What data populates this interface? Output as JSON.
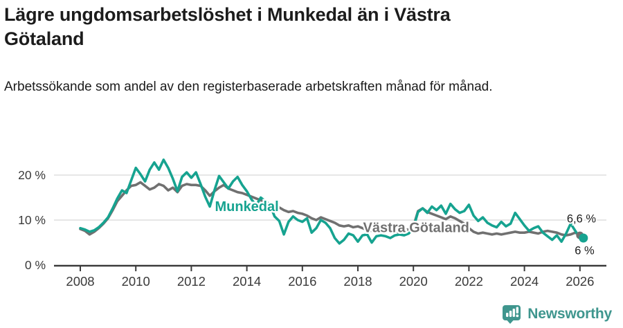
{
  "header": {
    "title": "Lägre ungdomsarbetslöshet i Munkedal än i Västra Götaland",
    "subtitle": "Arbetssökande som andel av den registerbaserade arbetskraften månad för månad."
  },
  "footer": {
    "brand": "Newsworthy",
    "logo_icon": "newsworthy-chart-bubble-icon",
    "brand_color": "#3f968e"
  },
  "chart_data": {
    "type": "line",
    "x_start_year": 2008,
    "x_step_months": 2,
    "x_ticks": [
      2008,
      2010,
      2012,
      2014,
      2016,
      2018,
      2020,
      2022,
      2024,
      2026
    ],
    "y_ticks": [
      {
        "value": 0,
        "label": "0 %"
      },
      {
        "value": 10,
        "label": "10 %"
      },
      {
        "value": 20,
        "label": "20 %"
      }
    ],
    "xlim": [
      2007.1,
      2027.0
    ],
    "ylim": [
      0,
      25
    ],
    "grid": "horizontal",
    "colors": {
      "grid": "#dedede",
      "axis": "#3a3a3a",
      "tick_text": "#3a3a3a",
      "annotation_text": "#1a1a1a"
    },
    "series": [
      {
        "name": "Västra Götaland",
        "color": "#707070",
        "end_label": "6,6 %",
        "end_value": 6.6,
        "label_pos": {
          "year": 2020.1,
          "value": 8.4
        },
        "dot_radius": 5.5,
        "dot_dx": 0,
        "values": [
          8.0,
          7.6,
          6.8,
          7.4,
          8.2,
          9.2,
          10.4,
          12.2,
          14.2,
          15.4,
          16.6,
          17.6,
          17.8,
          18.4,
          17.6,
          16.8,
          17.2,
          18.0,
          17.6,
          16.6,
          17.2,
          16.2,
          17.6,
          18.0,
          17.8,
          17.8,
          17.6,
          16.6,
          15.4,
          16.4,
          17.2,
          17.8,
          17.0,
          16.6,
          16.2,
          16.0,
          15.6,
          15.2,
          14.8,
          14.4,
          14.0,
          13.6,
          13.2,
          12.8,
          12.2,
          11.8,
          12.0,
          11.6,
          11.4,
          11.0,
          10.4,
          10.0,
          10.6,
          10.2,
          9.8,
          9.4,
          8.8,
          8.6,
          8.8,
          8.4,
          8.6,
          8.2,
          7.8,
          7.6,
          8.0,
          7.8,
          7.6,
          7.4,
          7.2,
          7.4,
          7.6,
          8.0,
          8.6,
          12.0,
          12.6,
          11.8,
          11.4,
          11.0,
          10.6,
          10.2,
          10.8,
          10.4,
          9.8,
          9.2,
          8.2,
          7.4,
          7.0,
          7.2,
          7.0,
          6.8,
          7.0,
          6.8,
          7.0,
          7.2,
          7.4,
          7.2,
          7.2,
          7.4,
          7.2,
          7.0,
          7.4,
          7.6,
          7.4,
          7.2,
          6.8,
          6.6,
          6.8,
          7.2,
          6.6
        ]
      },
      {
        "name": "Munkedal",
        "color": "#16a390",
        "end_label": "6 %",
        "end_value": 6.0,
        "label_pos": {
          "year": 2014.0,
          "value": 13.1
        },
        "dot_radius": 6.5,
        "dot_dx": 5,
        "values": [
          8.2,
          7.9,
          7.4,
          7.7,
          8.4,
          9.4,
          10.6,
          12.6,
          14.8,
          16.6,
          16.0,
          18.8,
          21.6,
          20.2,
          18.6,
          21.2,
          22.8,
          21.2,
          23.4,
          21.6,
          19.2,
          16.4,
          19.6,
          20.6,
          19.4,
          20.6,
          18.0,
          15.2,
          13.0,
          16.6,
          19.8,
          18.4,
          17.0,
          18.6,
          19.6,
          17.8,
          16.4,
          14.6,
          13.2,
          15.0,
          14.2,
          13.4,
          10.8,
          9.8,
          6.8,
          9.6,
          10.8,
          10.0,
          9.6,
          10.4,
          7.2,
          8.2,
          10.0,
          9.4,
          8.2,
          6.0,
          4.8,
          5.6,
          7.0,
          6.6,
          5.2,
          6.6,
          6.8,
          5.0,
          6.4,
          6.6,
          6.4,
          6.0,
          6.6,
          6.8,
          6.6,
          7.0,
          8.2,
          11.8,
          12.6,
          11.6,
          13.0,
          12.2,
          13.2,
          11.4,
          13.6,
          12.4,
          11.6,
          12.0,
          13.4,
          11.0,
          9.8,
          10.6,
          9.4,
          8.8,
          8.4,
          9.6,
          8.6,
          9.2,
          11.6,
          10.2,
          8.8,
          7.6,
          8.2,
          8.6,
          7.2,
          6.4,
          5.6,
          6.6,
          5.2,
          7.0,
          9.2,
          7.6,
          6.0
        ]
      }
    ],
    "annotations": [
      {
        "text": "6,6 %",
        "year": 2026.58,
        "value": 10.4,
        "anchor": "end"
      },
      {
        "text": "6 %",
        "year": 2026.52,
        "value": 3.3,
        "anchor": "end"
      }
    ]
  }
}
